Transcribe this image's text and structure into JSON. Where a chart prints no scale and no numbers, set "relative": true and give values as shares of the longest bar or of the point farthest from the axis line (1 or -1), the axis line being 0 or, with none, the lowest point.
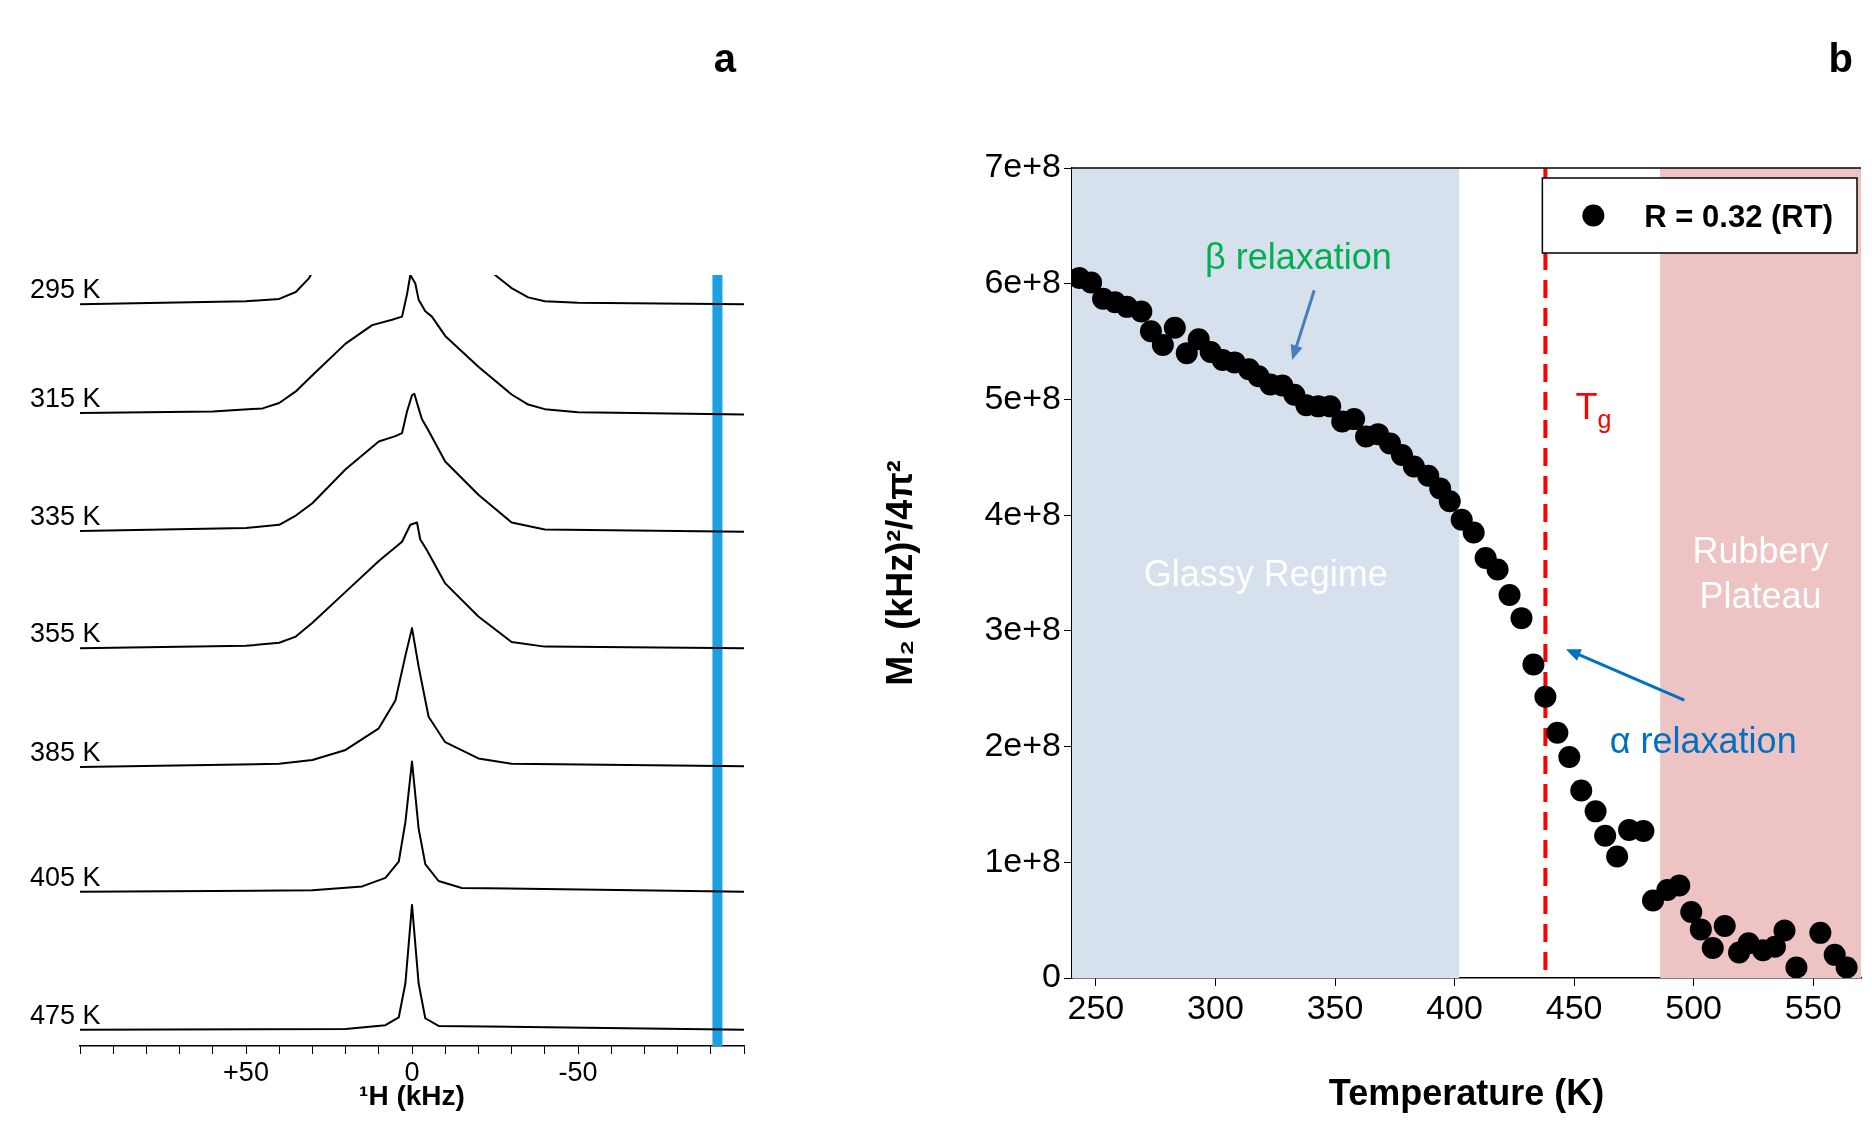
{
  "chart_data": [
    {
      "type": "line",
      "title": "a",
      "xlabel": "¹H (kHz)",
      "relative": true,
      "tick_labels": "x",
      "marker": "none",
      "xlim": [
        100,
        -100
      ],
      "xticks": [
        {
          "value": 100,
          "label": null
        },
        {
          "value": 90,
          "label": null
        },
        {
          "value": 80,
          "label": null
        },
        {
          "value": 70,
          "label": null
        },
        {
          "value": 60,
          "label": null
        },
        {
          "value": 50,
          "label": "+50"
        },
        {
          "value": 40,
          "label": null
        },
        {
          "value": 30,
          "label": null
        },
        {
          "value": 20,
          "label": null
        },
        {
          "value": 10,
          "label": null
        },
        0,
        {
          "value": -10,
          "label": null
        },
        {
          "value": -20,
          "label": null
        },
        {
          "value": -30,
          "label": null
        },
        {
          "value": -40,
          "label": null
        },
        -50,
        {
          "value": -60,
          "label": null
        },
        {
          "value": -70,
          "label": null
        },
        {
          "value": -80,
          "label": null
        },
        {
          "value": -90,
          "label": null
        },
        {
          "value": -100,
          "label": null
        }
      ],
      "ref_lines": [
        {
          "axis": "x",
          "value": -92,
          "color": "#1ba1e2"
        }
      ],
      "series": [
        {
          "name": "295 K",
          "color": "#000000",
          "x": [
            100,
            50,
            40,
            35,
            31,
            30.5,
            0,
            -25,
            -30,
            -35,
            -40,
            -50,
            -100
          ],
          "values": [
            0.962,
            0.966,
            0.969,
            0.978,
            0.996,
            1.0,
            null,
            1.0,
            0.983,
            0.971,
            0.966,
            0.964,
            0.962
          ]
        },
        {
          "name": "315 K",
          "color": "#000000",
          "x": [
            100,
            60,
            45,
            40,
            35,
            30,
            20,
            12,
            6,
            3,
            1.5,
            0.5,
            -1,
            -2,
            -4,
            -6,
            -10,
            -20,
            -30,
            -35,
            -40,
            -50,
            -100
          ],
          "values": [
            0.821,
            0.823,
            0.827,
            0.834,
            0.849,
            0.87,
            0.911,
            0.935,
            0.942,
            0.946,
            0.975,
            1.0,
            0.989,
            0.968,
            0.953,
            0.946,
            0.921,
            0.881,
            0.845,
            0.832,
            0.826,
            0.822,
            0.819
          ]
        },
        {
          "name": "335 K",
          "color": "#000000",
          "x": [
            100,
            50,
            40,
            35,
            30,
            20,
            10,
            5,
            3,
            1.5,
            0,
            -0.7,
            -2,
            -3,
            -4.5,
            -10,
            -20,
            -30,
            -40,
            -100
          ],
          "values": [
            0.668,
            0.672,
            0.676,
            0.688,
            0.704,
            0.748,
            0.784,
            0.791,
            0.795,
            0.823,
            0.844,
            0.846,
            0.827,
            0.813,
            0.802,
            0.758,
            0.715,
            0.679,
            0.67,
            0.667
          ]
        },
        {
          "name": "355 K",
          "color": "#000000",
          "x": [
            100,
            50,
            40,
            35,
            30,
            20,
            10,
            3,
            0.5,
            -1.5,
            -2.5,
            -4.5,
            -10,
            -20,
            -30,
            -40,
            -100
          ],
          "values": [
            0.516,
            0.519,
            0.523,
            0.531,
            0.549,
            0.589,
            0.629,
            0.654,
            0.676,
            0.679,
            0.657,
            0.643,
            0.6,
            0.557,
            0.524,
            0.518,
            0.516
          ]
        },
        {
          "name": "385 K",
          "color": "#000000",
          "x": [
            100,
            40,
            30,
            20,
            10,
            5,
            2,
            0,
            -2,
            -5,
            -10,
            -20,
            -30,
            -100
          ],
          "values": [
            0.362,
            0.366,
            0.371,
            0.384,
            0.412,
            0.448,
            0.506,
            0.542,
            0.492,
            0.427,
            0.394,
            0.373,
            0.366,
            0.363
          ]
        },
        {
          "name": "405 K",
          "color": "#000000",
          "x": [
            100,
            30,
            15,
            8,
            4,
            2,
            0,
            -2,
            -4,
            -8,
            -15,
            -100
          ],
          "values": [
            0.2,
            0.202,
            0.207,
            0.218,
            0.239,
            0.29,
            0.369,
            0.282,
            0.236,
            0.214,
            0.205,
            0.2
          ]
        },
        {
          "name": "475 K",
          "color": "#000000",
          "x": [
            100,
            20,
            8,
            4,
            2,
            0,
            -2,
            -4,
            -8,
            -100
          ],
          "values": [
            0.021,
            0.022,
            0.027,
            0.037,
            0.081,
            0.183,
            0.081,
            0.036,
            0.026,
            0.021
          ]
        }
      ]
    },
    {
      "type": "scatter",
      "title": "b",
      "xlabel": "Temperature (K)",
      "ylabel": "M₂ (kHz)²/4π²",
      "marker": "circle",
      "legend": "top right",
      "xlim": [
        240,
        570
      ],
      "xticks": [
        250,
        300,
        350,
        400,
        450,
        500,
        550
      ],
      "ylim": [
        0,
        700000000.0
      ],
      "yticks": [
        0,
        {
          "value": 100000000.0,
          "label": "1e+8"
        },
        {
          "value": 200000000.0,
          "label": "2e+8"
        },
        {
          "value": 300000000.0,
          "label": "3e+8"
        },
        {
          "value": 400000000.0,
          "label": "4e+8"
        },
        {
          "value": 500000000.0,
          "label": "5e+8"
        },
        {
          "value": 600000000.0,
          "label": "6e+8"
        },
        {
          "value": 700000000.0,
          "label": "7e+8"
        }
      ],
      "bands": [
        {
          "axis": "x",
          "from": 240,
          "to": 402,
          "label": "Glassy Regime",
          "color": "#d7e0ed"
        },
        {
          "axis": "x",
          "from": 486,
          "to": 570,
          "label": "Rubbery Plateau",
          "color": "#eec3c3"
        }
      ],
      "ref_lines": [
        {
          "axis": "x",
          "value": 438,
          "label": "T$_{g}$",
          "color": "#ff0000",
          "line_style": "dashed"
        }
      ],
      "annotations": [
        "β relaxation",
        "α relaxation"
      ],
      "x": [
        243,
        248,
        253,
        258,
        263,
        269,
        273,
        278,
        283,
        288,
        293,
        298,
        303,
        308,
        314,
        318,
        323,
        328,
        333,
        338,
        343,
        348,
        353,
        358,
        363,
        368,
        373,
        378,
        383,
        389,
        394,
        398,
        403,
        408,
        413,
        418,
        423,
        428,
        433,
        438,
        443,
        448,
        453,
        459,
        463,
        468,
        473,
        479,
        483,
        489,
        494,
        499,
        503,
        508,
        513,
        519,
        523,
        529,
        534,
        538,
        543,
        553,
        559,
        564
      ],
      "series": [
        {
          "name": "R = 0.32 (RT)",
          "color": "#000000",
          "values": [
            605000000.0,
            601000000.0,
            587000000.0,
            584000000.0,
            580000000.0,
            576000000.0,
            559000000.0,
            547000000.0,
            562000000.0,
            540000000.0,
            552000000.0,
            541000000.0,
            534000000.0,
            532000000.0,
            526000000.0,
            520000000.0,
            513000000.0,
            512000000.0,
            504000000.0,
            495000000.0,
            494000000.0,
            494000000.0,
            481000000.0,
            483000000.0,
            468000000.0,
            470000000.0,
            462000000.0,
            452000000.0,
            442000000.0,
            434000000.0,
            423000000.0,
            412000000.0,
            396000000.0,
            385000000.0,
            363000000.0,
            353000000.0,
            331000000.0,
            311000000.0,
            271000000.0,
            243000000.0,
            212000000.0,
            191000000.0,
            162000000.0,
            144000000.0,
            123000000.0,
            105000000.0,
            128000000.0,
            127000000.0,
            67000000.0,
            76000000.0,
            80000000.0,
            57000000.0,
            42000000.0,
            26000000.0,
            45000000.0,
            22000000.0,
            30000000.0,
            24000000.0,
            27000000.0,
            41000000.0,
            9000000.0,
            39000000.0,
            20000000.0,
            9000000.0
          ]
        }
      ]
    }
  ]
}
